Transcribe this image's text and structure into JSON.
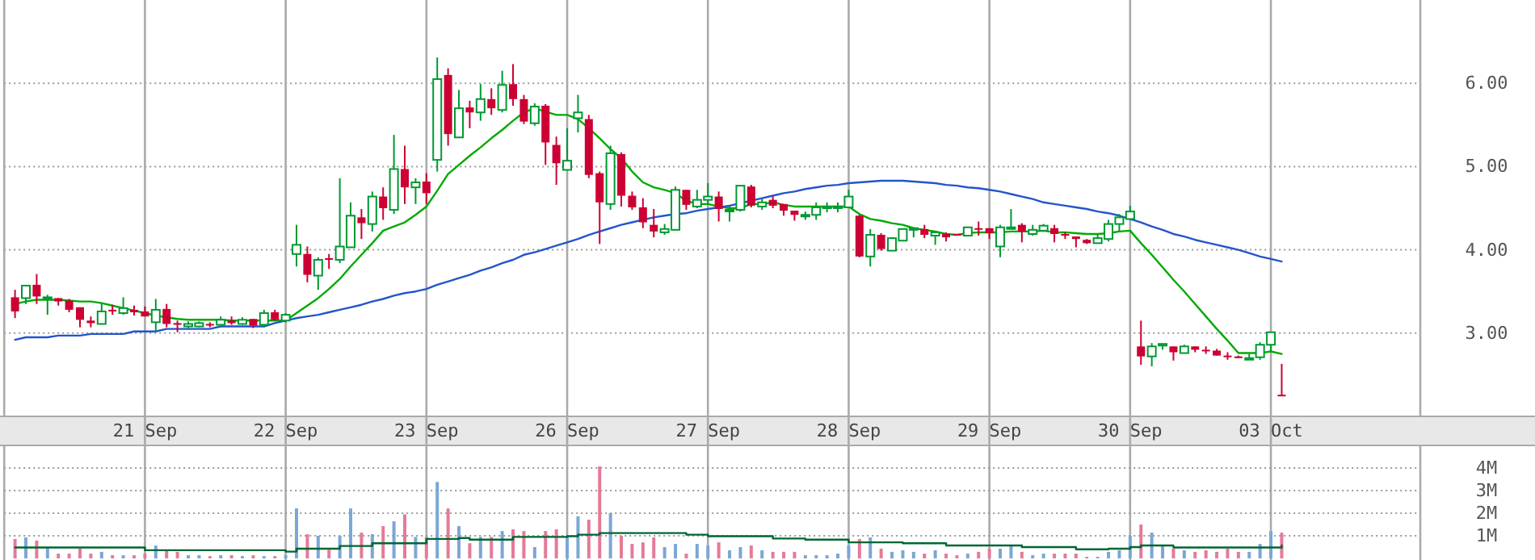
{
  "chart_data": [
    {
      "type": "candlestick",
      "categories": [
        null,
        null,
        null,
        null,
        null,
        null,
        null,
        null,
        null,
        null,
        null,
        null,
        "21 Sep",
        null,
        null,
        null,
        null,
        null,
        null,
        null,
        null,
        null,
        null,
        null,
        null,
        "22 Sep",
        null,
        null,
        null,
        null,
        null,
        null,
        null,
        null,
        null,
        null,
        null,
        null,
        "23 Sep",
        null,
        null,
        null,
        null,
        null,
        null,
        null,
        null,
        null,
        null,
        null,
        null,
        "26 Sep",
        null,
        null,
        null,
        null,
        null,
        null,
        null,
        null,
        null,
        null,
        null,
        null,
        "27 Sep",
        null,
        null,
        null,
        null,
        null,
        null,
        null,
        null,
        null,
        null,
        null,
        null,
        "28 Sep",
        null,
        null,
        null,
        null,
        null,
        null,
        null,
        null,
        null,
        null,
        null,
        null,
        "29 Sep",
        null,
        null,
        null,
        null,
        null,
        null,
        null,
        null,
        null,
        null,
        null,
        null,
        "30 Sep",
        null,
        null,
        null,
        null,
        null,
        null,
        null,
        null,
        null,
        null,
        null,
        null,
        "03 Oct",
        null
      ],
      "ohlc": [
        [
          3.43,
          3.52,
          3.18,
          3.26
        ],
        [
          3.42,
          3.57,
          3.35,
          3.57
        ],
        [
          3.58,
          3.71,
          3.35,
          3.44
        ],
        [
          3.42,
          3.46,
          3.22,
          3.43
        ],
        [
          3.42,
          3.42,
          3.33,
          3.38
        ],
        [
          3.39,
          3.41,
          3.25,
          3.28
        ],
        [
          3.31,
          3.31,
          3.07,
          3.16
        ],
        [
          3.15,
          3.2,
          3.07,
          3.12
        ],
        [
          3.11,
          3.36,
          3.11,
          3.26
        ],
        [
          3.28,
          3.34,
          3.22,
          3.26
        ],
        [
          3.24,
          3.43,
          3.22,
          3.3
        ],
        [
          3.28,
          3.33,
          3.21,
          3.25
        ],
        [
          3.26,
          3.32,
          3.2,
          3.2
        ],
        [
          3.13,
          3.41,
          3.01,
          3.28
        ],
        [
          3.29,
          3.35,
          3.07,
          3.11
        ],
        [
          3.12,
          3.15,
          3.01,
          3.1
        ],
        [
          3.08,
          3.14,
          3.06,
          3.11
        ],
        [
          3.08,
          3.14,
          3.07,
          3.12
        ],
        [
          3.11,
          3.13,
          3.07,
          3.1
        ],
        [
          3.1,
          3.2,
          3.07,
          3.16
        ],
        [
          3.15,
          3.2,
          3.1,
          3.12
        ],
        [
          3.11,
          3.19,
          3.1,
          3.16
        ],
        [
          3.17,
          3.17,
          3.06,
          3.09
        ],
        [
          3.1,
          3.28,
          3.07,
          3.24
        ],
        [
          3.25,
          3.28,
          3.15,
          3.16
        ],
        [
          3.15,
          3.24,
          3.13,
          3.22
        ],
        [
          3.95,
          4.3,
          3.8,
          4.06
        ],
        [
          3.95,
          4.04,
          3.61,
          3.7
        ],
        [
          3.69,
          3.91,
          3.52,
          3.88
        ],
        [
          3.9,
          3.95,
          3.77,
          3.88
        ],
        [
          3.88,
          4.86,
          3.84,
          4.04
        ],
        [
          4.03,
          4.57,
          4.03,
          4.41
        ],
        [
          4.39,
          4.49,
          4.13,
          4.32
        ],
        [
          4.31,
          4.7,
          4.22,
          4.64
        ],
        [
          4.64,
          4.75,
          4.36,
          4.5
        ],
        [
          4.48,
          5.38,
          4.43,
          4.97
        ],
        [
          4.97,
          5.25,
          4.55,
          4.75
        ],
        [
          4.75,
          4.86,
          4.55,
          4.81
        ],
        [
          4.82,
          4.92,
          4.55,
          4.68
        ],
        [
          5.08,
          6.31,
          4.94,
          6.05
        ],
        [
          6.1,
          6.18,
          5.25,
          5.39
        ],
        [
          5.35,
          5.92,
          5.35,
          5.7
        ],
        [
          5.71,
          5.79,
          5.46,
          5.65
        ],
        [
          5.65,
          5.99,
          5.55,
          5.81
        ],
        [
          5.81,
          5.94,
          5.62,
          5.7
        ],
        [
          5.68,
          6.15,
          5.65,
          5.98
        ],
        [
          5.99,
          6.23,
          5.73,
          5.81
        ],
        [
          5.81,
          5.86,
          5.51,
          5.54
        ],
        [
          5.52,
          5.76,
          5.49,
          5.72
        ],
        [
          5.73,
          5.75,
          5.02,
          5.29
        ],
        [
          5.26,
          5.36,
          4.78,
          5.04
        ],
        [
          4.96,
          5.46,
          4.96,
          5.07
        ],
        [
          5.58,
          5.86,
          5.41,
          5.65
        ],
        [
          5.57,
          5.62,
          4.86,
          4.9
        ],
        [
          4.92,
          4.94,
          4.07,
          4.57
        ],
        [
          4.55,
          5.25,
          4.48,
          5.16
        ],
        [
          5.15,
          5.17,
          4.52,
          4.65
        ],
        [
          4.65,
          4.7,
          4.48,
          4.51
        ],
        [
          4.51,
          4.62,
          4.26,
          4.33
        ],
        [
          4.3,
          4.49,
          4.15,
          4.22
        ],
        [
          4.21,
          4.31,
          4.18,
          4.25
        ],
        [
          4.24,
          4.76,
          4.24,
          4.72
        ],
        [
          4.72,
          4.72,
          4.48,
          4.54
        ],
        [
          4.52,
          4.72,
          4.5,
          4.6
        ],
        [
          4.6,
          4.8,
          4.55,
          4.64
        ],
        [
          4.64,
          4.7,
          4.34,
          4.49
        ],
        [
          4.47,
          4.52,
          4.34,
          4.48
        ],
        [
          4.48,
          4.77,
          4.46,
          4.77
        ],
        [
          4.76,
          4.78,
          4.51,
          4.53
        ],
        [
          4.52,
          4.62,
          4.48,
          4.57
        ],
        [
          4.6,
          4.64,
          4.5,
          4.53
        ],
        [
          4.55,
          4.55,
          4.41,
          4.47
        ],
        [
          4.47,
          4.47,
          4.35,
          4.42
        ],
        [
          4.41,
          4.46,
          4.36,
          4.42
        ],
        [
          4.42,
          4.57,
          4.36,
          4.51
        ],
        [
          4.5,
          4.57,
          4.45,
          4.52
        ],
        [
          4.51,
          4.57,
          4.45,
          4.52
        ],
        [
          4.51,
          4.72,
          4.51,
          4.64
        ],
        [
          4.41,
          4.42,
          3.91,
          3.92
        ],
        [
          3.92,
          4.25,
          3.8,
          4.18
        ],
        [
          4.18,
          4.2,
          3.99,
          4.01
        ],
        [
          3.99,
          4.15,
          3.99,
          4.14
        ],
        [
          4.11,
          4.25,
          4.11,
          4.25
        ],
        [
          4.24,
          4.26,
          4.15,
          4.26
        ],
        [
          4.25,
          4.3,
          4.14,
          4.18
        ],
        [
          4.17,
          4.21,
          4.06,
          4.21
        ],
        [
          4.19,
          4.21,
          4.1,
          4.15
        ],
        [
          4.19,
          4.19,
          4.17,
          4.18
        ],
        [
          4.17,
          4.27,
          4.17,
          4.27
        ],
        [
          4.26,
          4.34,
          4.17,
          4.25
        ],
        [
          4.26,
          4.26,
          4.13,
          4.2
        ],
        [
          4.04,
          4.3,
          3.91,
          4.27
        ],
        [
          4.26,
          4.49,
          4.26,
          4.27
        ],
        [
          4.3,
          4.32,
          4.09,
          4.22
        ],
        [
          4.19,
          4.3,
          4.17,
          4.24
        ],
        [
          4.23,
          4.31,
          4.23,
          4.29
        ],
        [
          4.26,
          4.3,
          4.09,
          4.19
        ],
        [
          4.19,
          4.21,
          4.13,
          4.17
        ],
        [
          4.16,
          4.16,
          4.03,
          4.13
        ],
        [
          4.12,
          4.13,
          4.07,
          4.08
        ],
        [
          4.08,
          4.18,
          4.08,
          4.14
        ],
        [
          4.13,
          4.36,
          4.1,
          4.31
        ],
        [
          4.31,
          4.43,
          4.22,
          4.39
        ],
        [
          4.37,
          4.53,
          4.36,
          4.46
        ],
        [
          2.84,
          3.15,
          2.62,
          2.72
        ],
        [
          2.72,
          2.88,
          2.6,
          2.84
        ],
        [
          2.85,
          2.87,
          2.8,
          2.87
        ],
        [
          2.84,
          2.84,
          2.67,
          2.77
        ],
        [
          2.76,
          2.86,
          2.76,
          2.84
        ],
        [
          2.84,
          2.84,
          2.77,
          2.8
        ],
        [
          2.8,
          2.84,
          2.75,
          2.79
        ],
        [
          2.79,
          2.81,
          2.73,
          2.73
        ],
        [
          2.73,
          2.77,
          2.68,
          2.72
        ],
        [
          2.72,
          2.73,
          2.7,
          2.7
        ],
        [
          2.69,
          2.75,
          2.68,
          2.7
        ],
        [
          2.71,
          2.89,
          2.68,
          2.86
        ],
        [
          2.86,
          3.01,
          2.78,
          3.01
        ],
        [
          2.26,
          2.63,
          2.25,
          2.25
        ]
      ],
      "colors": [
        "#cc0033",
        "#009933",
        "#cc0033",
        "#009933",
        "#cc0033",
        "#cc0033",
        "#cc0033",
        "#cc0033",
        "#009933",
        "#cc0033",
        "#009933",
        "#cc0033",
        "#cc0033",
        "#009933",
        "#cc0033",
        "#cc0033",
        "#009933",
        "#009933",
        "#cc0033",
        "#009933",
        "#cc0033",
        "#009933",
        "#cc0033",
        "#009933",
        "#cc0033",
        "#009933",
        "#009933",
        "#cc0033",
        "#009933",
        "#cc0033",
        "#009933",
        "#009933",
        "#cc0033",
        "#009933",
        "#cc0033",
        "#009933",
        "#cc0033",
        "#009933",
        "#cc0033",
        "#009933",
        "#cc0033",
        "#009933",
        "#cc0033",
        "#009933",
        "#cc0033",
        "#009933",
        "#cc0033",
        "#cc0033",
        "#009933",
        "#cc0033",
        "#cc0033",
        "#009933",
        "#009933",
        "#cc0033",
        "#cc0033",
        "#009933",
        "#cc0033",
        "#cc0033",
        "#cc0033",
        "#cc0033",
        "#009933",
        "#009933",
        "#cc0033",
        "#009933",
        "#009933",
        "#cc0033",
        "#009933",
        "#009933",
        "#cc0033",
        "#009933",
        "#cc0033",
        "#cc0033",
        "#cc0033",
        "#009933",
        "#009933",
        "#009933",
        "#009933",
        "#009933",
        "#cc0033",
        "#009933",
        "#cc0033",
        "#009933",
        "#009933",
        "#009933",
        "#cc0033",
        "#009933",
        "#cc0033",
        "#cc0033",
        "#009933",
        "#cc0033",
        "#cc0033",
        "#009933",
        "#009933",
        "#cc0033",
        "#009933",
        "#009933",
        "#cc0033",
        "#cc0033",
        "#cc0033",
        "#cc0033",
        "#009933",
        "#009933",
        "#009933",
        "#009933",
        "#cc0033",
        "#009933",
        "#009933",
        "#cc0033",
        "#009933",
        "#cc0033",
        "#cc0033",
        "#cc0033",
        "#cc0033",
        "#cc0033",
        "#009933",
        "#009933",
        "#009933",
        "#cc0033"
      ],
      "series": [
        {
          "type": "line",
          "color": "#00aa00",
          "values": [
            3.35,
            3.38,
            3.4,
            3.4,
            3.4,
            3.39,
            3.38,
            3.38,
            3.36,
            3.33,
            3.3,
            3.27,
            3.24,
            3.21,
            3.19,
            3.17,
            3.16,
            3.16,
            3.16,
            3.16,
            3.15,
            3.15,
            3.15,
            3.15,
            3.15,
            3.15,
            3.24,
            3.33,
            3.42,
            3.53,
            3.65,
            3.8,
            3.94,
            4.08,
            4.23,
            4.28,
            4.33,
            4.42,
            4.52,
            4.71,
            4.91,
            5.02,
            5.13,
            5.23,
            5.34,
            5.44,
            5.55,
            5.65,
            5.7,
            5.66,
            5.62,
            5.62,
            5.57,
            5.46,
            5.34,
            5.21,
            5.1,
            4.94,
            4.81,
            4.75,
            4.72,
            4.68,
            4.59,
            4.55,
            4.55,
            4.52,
            4.5,
            4.5,
            4.55,
            4.55,
            4.57,
            4.54,
            4.52,
            4.52,
            4.52,
            4.52,
            4.52,
            4.52,
            4.43,
            4.37,
            4.35,
            4.32,
            4.3,
            4.26,
            4.24,
            4.22,
            4.19,
            4.18,
            4.2,
            4.21,
            4.21,
            4.21,
            4.22,
            4.22,
            4.22,
            4.23,
            4.21,
            4.21,
            4.2,
            4.19,
            4.19,
            4.2,
            4.22,
            4.23,
            4.08,
            3.94,
            3.79,
            3.64,
            3.5,
            3.35,
            3.2,
            3.05,
            2.91,
            2.76,
            2.76,
            2.76,
            2.78,
            2.75
          ]
        },
        {
          "type": "line",
          "color": "#2255cc",
          "values": [
            2.92,
            2.95,
            2.95,
            2.95,
            2.97,
            2.97,
            2.97,
            2.99,
            2.99,
            2.99,
            2.99,
            3.02,
            3.02,
            3.02,
            3.05,
            3.05,
            3.05,
            3.05,
            3.05,
            3.08,
            3.08,
            3.08,
            3.08,
            3.08,
            3.12,
            3.15,
            3.18,
            3.2,
            3.22,
            3.25,
            3.28,
            3.31,
            3.34,
            3.38,
            3.41,
            3.45,
            3.48,
            3.5,
            3.53,
            3.58,
            3.62,
            3.66,
            3.7,
            3.75,
            3.79,
            3.84,
            3.88,
            3.94,
            3.97,
            4.01,
            4.05,
            4.09,
            4.13,
            4.18,
            4.22,
            4.26,
            4.3,
            4.33,
            4.36,
            4.39,
            4.41,
            4.43,
            4.44,
            4.47,
            4.49,
            4.51,
            4.53,
            4.56,
            4.59,
            4.62,
            4.65,
            4.68,
            4.7,
            4.73,
            4.75,
            4.77,
            4.78,
            4.8,
            4.81,
            4.82,
            4.83,
            4.83,
            4.83,
            4.82,
            4.81,
            4.8,
            4.78,
            4.77,
            4.75,
            4.74,
            4.72,
            4.7,
            4.67,
            4.64,
            4.61,
            4.57,
            4.55,
            4.53,
            4.51,
            4.49,
            4.46,
            4.44,
            4.41,
            4.37,
            4.33,
            4.28,
            4.24,
            4.19,
            4.16,
            4.12,
            4.09,
            4.06,
            4.03,
            4,
            3.96,
            3.92,
            3.89,
            3.86
          ]
        }
      ],
      "ylim": [
        2,
        7
      ],
      "yticks": [
        {
          "value": 3,
          "label": "3.00"
        },
        {
          "value": 4,
          "label": "4.00"
        },
        {
          "value": 5,
          "label": "5.00"
        },
        {
          "value": 6,
          "label": "6.00"
        }
      ],
      "grid": true
    },
    {
      "type": "bar",
      "categories": [
        null,
        null,
        null,
        null,
        null,
        null,
        null,
        null,
        null,
        null,
        null,
        null,
        null,
        null,
        null,
        null,
        null,
        null,
        null,
        null,
        null,
        null,
        null,
        null,
        null,
        null,
        null,
        null,
        null,
        null,
        null,
        null,
        null,
        null,
        null,
        null,
        null,
        null,
        null,
        null,
        null,
        null,
        null,
        null,
        null,
        null,
        null,
        null,
        null,
        null,
        null,
        null,
        null,
        null,
        null,
        null,
        null,
        null,
        null,
        null,
        null,
        null,
        null,
        null,
        null,
        null,
        null,
        null,
        null,
        null,
        null,
        null,
        null,
        null,
        null,
        null,
        null,
        null,
        null,
        null,
        null,
        null,
        null,
        null,
        null,
        null,
        null,
        null,
        null,
        null,
        null,
        null,
        null,
        null,
        null,
        null,
        null,
        null,
        null,
        null,
        null,
        null,
        null,
        null,
        null,
        null,
        null,
        null,
        null,
        null,
        null,
        null,
        null,
        null,
        null,
        null,
        null,
        null
      ],
      "values": [
        0.86,
        0.93,
        0.79,
        0.48,
        0.21,
        0.21,
        0.43,
        0.21,
        0.29,
        0.14,
        0.14,
        0.14,
        0.21,
        0.57,
        0.38,
        0.29,
        0.14,
        0.14,
        0.1,
        0.14,
        0.14,
        0.1,
        0.14,
        0.1,
        0.1,
        0.14,
        2.21,
        1.07,
        1,
        0.38,
        1,
        2.21,
        1.14,
        1.07,
        1.43,
        1.64,
        1.95,
        0.95,
        0.95,
        3.38,
        2.21,
        1.43,
        0.67,
        0.95,
        0.95,
        1.21,
        1.29,
        1.21,
        0.5,
        1.21,
        1.29,
        0.95,
        1.86,
        1.71,
        4.07,
        2,
        1,
        0.64,
        0.71,
        0.93,
        0.5,
        0.64,
        0.21,
        0.64,
        0.57,
        0.71,
        0.36,
        0.5,
        0.57,
        0.36,
        0.29,
        0.29,
        0.29,
        0.14,
        0.14,
        0.14,
        0.21,
        0.57,
        0.86,
        0.93,
        0.43,
        0.29,
        0.36,
        0.29,
        0.21,
        0.36,
        0.21,
        0.14,
        0.21,
        0.29,
        0.43,
        0.43,
        0.57,
        0.29,
        0.14,
        0.21,
        0.21,
        0.21,
        0.21,
        0.07,
        0.07,
        0.29,
        0.36,
        1,
        1.5,
        1.14,
        0.57,
        0.43,
        0.36,
        0.29,
        0.36,
        0.29,
        0.43,
        0.29,
        0.29,
        0.64,
        1.21,
        1.14
      ],
      "colors": [
        "#e67a98",
        "#7aa7d6",
        "#e67a98",
        "#7aa7d6",
        "#e67a98",
        "#e67a98",
        "#e67a98",
        "#e67a98",
        "#7aa7d6",
        "#e67a98",
        "#7aa7d6",
        "#e67a98",
        "#e67a98",
        "#7aa7d6",
        "#e67a98",
        "#e67a98",
        "#7aa7d6",
        "#7aa7d6",
        "#e67a98",
        "#7aa7d6",
        "#e67a98",
        "#7aa7d6",
        "#e67a98",
        "#7aa7d6",
        "#e67a98",
        "#7aa7d6",
        "#7aa7d6",
        "#e67a98",
        "#7aa7d6",
        "#e67a98",
        "#7aa7d6",
        "#7aa7d6",
        "#e67a98",
        "#7aa7d6",
        "#e67a98",
        "#7aa7d6",
        "#e67a98",
        "#7aa7d6",
        "#e67a98",
        "#7aa7d6",
        "#e67a98",
        "#7aa7d6",
        "#e67a98",
        "#7aa7d6",
        "#e67a98",
        "#7aa7d6",
        "#e67a98",
        "#e67a98",
        "#7aa7d6",
        "#e67a98",
        "#e67a98",
        "#7aa7d6",
        "#7aa7d6",
        "#e67a98",
        "#e67a98",
        "#7aa7d6",
        "#e67a98",
        "#e67a98",
        "#e67a98",
        "#e67a98",
        "#7aa7d6",
        "#7aa7d6",
        "#e67a98",
        "#7aa7d6",
        "#7aa7d6",
        "#e67a98",
        "#7aa7d6",
        "#7aa7d6",
        "#e67a98",
        "#7aa7d6",
        "#e67a98",
        "#e67a98",
        "#e67a98",
        "#7aa7d6",
        "#7aa7d6",
        "#7aa7d6",
        "#7aa7d6",
        "#7aa7d6",
        "#e67a98",
        "#7aa7d6",
        "#e67a98",
        "#7aa7d6",
        "#7aa7d6",
        "#7aa7d6",
        "#e67a98",
        "#7aa7d6",
        "#e67a98",
        "#e67a98",
        "#7aa7d6",
        "#e67a98",
        "#e67a98",
        "#7aa7d6",
        "#7aa7d6",
        "#e67a98",
        "#7aa7d6",
        "#7aa7d6",
        "#e67a98",
        "#e67a98",
        "#e67a98",
        "#e67a98",
        "#7aa7d6",
        "#7aa7d6",
        "#7aa7d6",
        "#7aa7d6",
        "#e67a98",
        "#7aa7d6",
        "#7aa7d6",
        "#e67a98",
        "#7aa7d6",
        "#e67a98",
        "#e67a98",
        "#e67a98",
        "#e67a98",
        "#e67a98",
        "#7aa7d6",
        "#7aa7d6",
        "#7aa7d6",
        "#e67a98"
      ],
      "series": [
        {
          "type": "step",
          "color": "#006633",
          "values": [
            0.48,
            0.48,
            0.48,
            0.48,
            0.48,
            0.48,
            0.48,
            0.48,
            0.48,
            0.48,
            0.48,
            0.48,
            0.36,
            0.36,
            0.36,
            0.36,
            0.36,
            0.36,
            0.36,
            0.36,
            0.36,
            0.36,
            0.36,
            0.36,
            0.36,
            0.3,
            0.43,
            0.43,
            0.43,
            0.43,
            0.55,
            0.55,
            0.55,
            0.67,
            0.67,
            0.67,
            0.67,
            0.67,
            0.86,
            0.86,
            0.86,
            0.9,
            0.83,
            0.83,
            0.83,
            0.83,
            0.95,
            0.95,
            0.95,
            0.95,
            0.95,
            0.98,
            1.05,
            1.05,
            1.12,
            1.12,
            1.12,
            1.12,
            1.12,
            1.12,
            1.12,
            1.12,
            1.05,
            1.05,
            0.98,
            0.98,
            0.98,
            0.98,
            0.98,
            0.98,
            0.88,
            0.88,
            0.88,
            0.83,
            0.83,
            0.83,
            0.83,
            0.71,
            0.71,
            0.71,
            0.71,
            0.71,
            0.67,
            0.67,
            0.67,
            0.67,
            0.57,
            0.57,
            0.57,
            0.57,
            0.57,
            0.57,
            0.57,
            0.5,
            0.5,
            0.5,
            0.5,
            0.5,
            0.4,
            0.4,
            0.4,
            0.43,
            0.43,
            0.5,
            0.57,
            0.57,
            0.57,
            0.48,
            0.48,
            0.48,
            0.48,
            0.48,
            0.48,
            0.48,
            0.48,
            0.48,
            0.48,
            0.57
          ]
        }
      ],
      "ylim": [
        0,
        5
      ],
      "yticks": [
        {
          "value": 1,
          "label": "1M"
        },
        {
          "value": 2,
          "label": "2M"
        },
        {
          "value": 3,
          "label": "3M"
        },
        {
          "value": 4,
          "label": "4M"
        }
      ],
      "grid": "y",
      "tick_labels": "y"
    }
  ]
}
